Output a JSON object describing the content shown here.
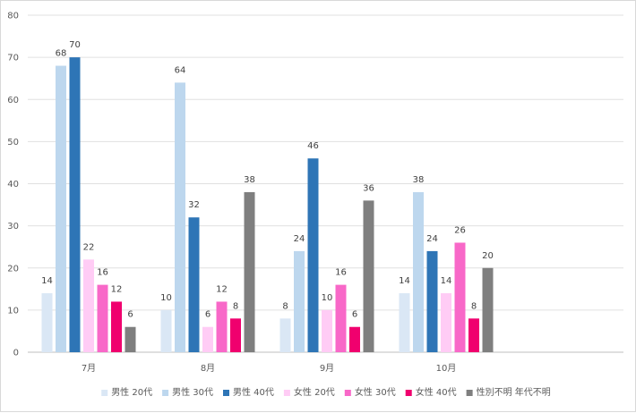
{
  "chart_data": {
    "type": "bar",
    "categories": [
      "7月",
      "8月",
      "9月",
      "10月"
    ],
    "series": [
      {
        "name": "男性 20代",
        "color": "#dae7f5",
        "values": [
          14,
          10,
          8,
          14
        ]
      },
      {
        "name": "男性 30代",
        "color": "#bdd7ee",
        "values": [
          68,
          64,
          24,
          38
        ]
      },
      {
        "name": "男性 40代",
        "color": "#2e75b6",
        "values": [
          70,
          32,
          46,
          24
        ]
      },
      {
        "name": "女性 20代",
        "color": "#ffccf5",
        "values": [
          22,
          6,
          10,
          14
        ]
      },
      {
        "name": "女性 30代",
        "color": "#f868c8",
        "values": [
          16,
          12,
          16,
          26
        ]
      },
      {
        "name": "女性 40代",
        "color": "#f0006e",
        "values": [
          12,
          8,
          6,
          8
        ]
      },
      {
        "name": "性別不明 年代不明",
        "color": "#7f7f7f",
        "values": [
          6,
          38,
          36,
          20
        ]
      }
    ],
    "yticks": [
      0,
      10,
      20,
      30,
      40,
      50,
      60,
      70,
      80
    ],
    "ylim": [
      0,
      80
    ],
    "grid": true,
    "data_labels": true,
    "legend_position": "bottom",
    "title": "",
    "xlabel": "",
    "ylabel": ""
  }
}
